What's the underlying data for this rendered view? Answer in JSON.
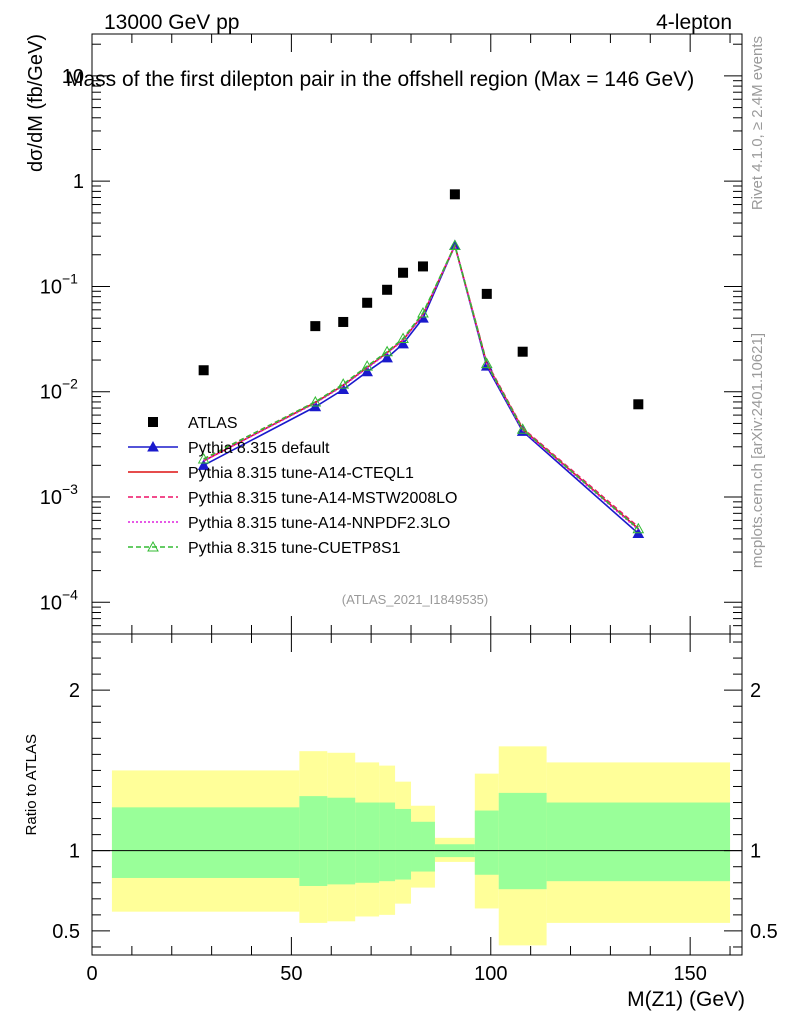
{
  "header": {
    "energy_label": "13000 GeV pp",
    "process_label": "4-lepton",
    "plot_title": "Mass of the first dilepton pair in the offshell region (Max = 146 GeV)",
    "side_label_rivet": "Rivet 4.1.0, ≥ 2.4M events",
    "side_label_mcplots": "mcplots.cern.ch [arXiv:2401.10621]",
    "analysis_id": "(ATLAS_2021_I1849535)"
  },
  "chart_data": {
    "type": "line",
    "title": "Mass of the first dilepton pair in the offshell region (Max = 146 GeV)",
    "xlabel": "M(Z1) (GeV)",
    "ylabel": "dσ/dM (fb/GeV)",
    "ratio_ylabel": "Ratio to ATLAS",
    "xlim": [
      0,
      163
    ],
    "ylim": [
      5e-05,
      25
    ],
    "yscale": "log",
    "x_ticks": [
      0,
      50,
      100,
      150
    ],
    "x_tick_labels": [
      "0",
      "50",
      "100",
      "150"
    ],
    "y_tick_values": [
      0.0001,
      0.001,
      0.01,
      0.1,
      1,
      10
    ],
    "y_tick_labels": [
      {
        "base": "10",
        "exp": "−4"
      },
      {
        "base": "10",
        "exp": "−3"
      },
      {
        "base": "10",
        "exp": "−2"
      },
      {
        "base": "10",
        "exp": "−1"
      },
      {
        "base": "1",
        "exp": ""
      },
      {
        "base": "10",
        "exp": ""
      }
    ],
    "ratio_ylim": [
      0.35,
      2.35
    ],
    "ratio_ticks": [
      0.5,
      1,
      2
    ],
    "ratio_tick_labels": [
      "0.5",
      "1",
      "2"
    ],
    "data": {
      "name": "ATLAS",
      "x": [
        28,
        56,
        63,
        69,
        74,
        78,
        83,
        91,
        99,
        108,
        137
      ],
      "y": [
        0.016,
        0.042,
        0.046,
        0.07,
        0.093,
        0.135,
        0.155,
        0.75,
        0.085,
        0.024,
        0.0076
      ]
    },
    "bins": [
      5,
      52,
      59,
      66,
      72,
      76,
      80,
      86,
      96,
      102,
      114,
      160
    ],
    "ratio_green": [
      [
        0.83,
        1.27
      ],
      [
        0.78,
        1.34
      ],
      [
        0.79,
        1.33
      ],
      [
        0.8,
        1.3
      ],
      [
        0.81,
        1.3
      ],
      [
        0.82,
        1.26
      ],
      [
        0.87,
        1.18
      ],
      [
        0.96,
        1.04
      ],
      [
        0.85,
        1.25
      ],
      [
        0.76,
        1.36
      ],
      [
        0.81,
        1.3
      ]
    ],
    "ratio_yellow": [
      [
        0.62,
        1.5
      ],
      [
        0.55,
        1.62
      ],
      [
        0.56,
        1.61
      ],
      [
        0.59,
        1.55
      ],
      [
        0.6,
        1.53
      ],
      [
        0.67,
        1.43
      ],
      [
        0.77,
        1.28
      ],
      [
        0.93,
        1.08
      ],
      [
        0.64,
        1.48
      ],
      [
        0.41,
        1.65
      ],
      [
        0.55,
        1.55
      ]
    ],
    "series": [
      {
        "name": "Pythia 8.315 default",
        "color": "#1a1acc",
        "dash": "",
        "marker": "triangle-filled",
        "x": [
          28,
          56,
          63,
          69,
          74,
          78,
          83,
          91,
          99,
          108,
          137
        ],
        "y": [
          0.002,
          0.0072,
          0.0105,
          0.0155,
          0.021,
          0.0285,
          0.05,
          0.245,
          0.0175,
          0.0042,
          0.00045
        ]
      },
      {
        "name": "Pythia 8.315 tune-A14-CTEQL1",
        "color": "#dd1111",
        "dash": "",
        "marker": "none",
        "x": [
          28,
          56,
          63,
          69,
          74,
          78,
          83,
          91,
          99,
          108,
          137
        ],
        "y": [
          0.0022,
          0.0079,
          0.0115,
          0.017,
          0.0235,
          0.031,
          0.054,
          0.245,
          0.0185,
          0.0044,
          0.0005
        ]
      },
      {
        "name": "Pythia 8.315 tune-A14-MSTW2008LO",
        "color": "#ee1166",
        "dash": "5,3",
        "marker": "none",
        "x": [
          28,
          56,
          63,
          69,
          74,
          78,
          83,
          91,
          99,
          108,
          137
        ],
        "y": [
          0.0023,
          0.008,
          0.0117,
          0.0172,
          0.0238,
          0.0315,
          0.055,
          0.245,
          0.019,
          0.0045,
          0.00052
        ]
      },
      {
        "name": "Pythia 8.315 tune-A14-NNPDF2.3LO",
        "color": "#dd22dd",
        "dash": "2,2",
        "marker": "none",
        "x": [
          28,
          56,
          63,
          69,
          74,
          78,
          83,
          91,
          99,
          108,
          137
        ],
        "y": [
          0.0022,
          0.0078,
          0.0114,
          0.0168,
          0.0232,
          0.0308,
          0.0535,
          0.245,
          0.0182,
          0.0043,
          0.00049
        ]
      },
      {
        "name": "Pythia 8.315 tune-CUETP8S1",
        "color": "#33bb33",
        "dash": "5,3",
        "marker": "triangle-open",
        "x": [
          28,
          56,
          63,
          69,
          74,
          78,
          83,
          91,
          99,
          108,
          137
        ],
        "y": [
          0.0023,
          0.008,
          0.0118,
          0.0175,
          0.024,
          0.032,
          0.056,
          0.245,
          0.0185,
          0.0044,
          0.0005
        ]
      }
    ]
  }
}
